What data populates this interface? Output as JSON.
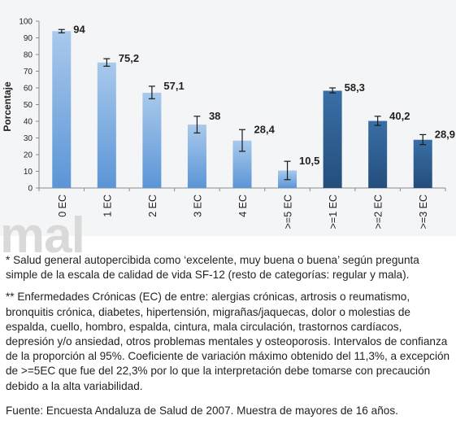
{
  "chart_data": {
    "type": "bar",
    "title": "",
    "xlabel": "",
    "ylabel": "Porcentaje",
    "ylim": [
      0,
      100
    ],
    "yticks": [
      0,
      10,
      20,
      30,
      40,
      50,
      60,
      70,
      80,
      90,
      100
    ],
    "grid": false,
    "categories": [
      "0 EC",
      "1 EC",
      "2 EC",
      "3 EC",
      "4 EC",
      ">=5 EC",
      ">=1 EC",
      ">=2 EC",
      ">=3 EC"
    ],
    "values": [
      94,
      75.2,
      57.1,
      38,
      28.4,
      10.5,
      58.3,
      40.2,
      28.9
    ],
    "value_labels": [
      "94",
      "75,2",
      "57,1",
      "38",
      "28,4",
      "10,5",
      "58,3",
      "40,2",
      "28,9"
    ],
    "error_low": [
      93,
      73,
      53.5,
      33,
      22,
      5,
      57,
      37.5,
      26
    ],
    "error_high": [
      95,
      77.5,
      61,
      43,
      35,
      16,
      60,
      43,
      32
    ],
    "colors": [
      "#8fb8e3",
      "#8fb8e3",
      "#8fb8e3",
      "#8fb8e3",
      "#8fb8e3",
      "#8fb8e3",
      "#2d5f93",
      "#2d5f93",
      "#2d5f93"
    ]
  },
  "watermark_text": "mal",
  "notes": {
    "note1": "* Salud general autopercibida como ‘excelente, muy buena o buena’ según pregunta simple de la escala de calidad de vida SF-12 (resto de categorías: regular y mala).",
    "note2": "** Enfermedades Crónicas (EC) de entre: alergias crónicas, artrosis o reumatismo, bronquitis crónica, diabetes, hipertensión, migrañas/jaquecas, dolor o molestias de espalda, cuello, hombro, espalda, cintura, mala circulación, trastornos cardíacos, depresión y/o ansiedad, otros problemas mentales y osteoporosis. Intervalos de confianza de la proporción al 95%. Coeficiente de variación máximo obtenido del 11,3%, a excepción de >=5EC que fue del 22,3% por lo que la interpretación debe tomarse con precaución debido a la alta variabilidad.",
    "source": "Fuente: Encuesta Andaluza de Salud de 2007. Muestra de mayores de 16 años."
  }
}
